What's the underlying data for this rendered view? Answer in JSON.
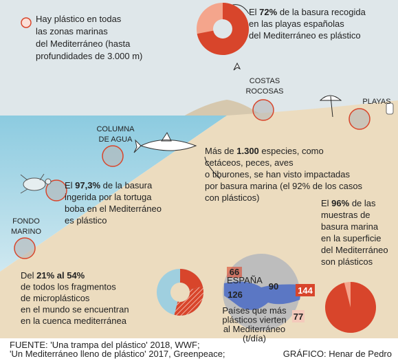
{
  "legend": {
    "lines": [
      [
        "Hay plástico en todas"
      ],
      [
        "las zonas marinas"
      ],
      [
        "del Mediterráneo (hasta"
      ],
      [
        "profundidades de 3.000 m)"
      ]
    ]
  },
  "annotations": [
    {
      "lines": [
        [
          "El ",
          {
            "text": "72%",
            "bold": true
          },
          " de la basura recogida"
        ],
        [
          "en las playas españolas"
        ],
        [
          "del Mediterráneo es plástico"
        ]
      ]
    },
    {
      "lines": [
        [
          "Más de ",
          {
            "text": "1.300",
            "bold": true
          },
          " especies, como"
        ],
        [
          "cetáceos, peces, aves"
        ],
        [
          "o tiburones, se han visto impactadas"
        ],
        [
          "por basura marina (el 92% de los casos"
        ],
        [
          "con plásticos)"
        ]
      ]
    },
    {
      "lines": [
        [
          "El ",
          {
            "text": "97,3%",
            "bold": true
          },
          " de la basura"
        ],
        [
          "ingerida por la tortuga"
        ],
        [
          "boba en el Mediterráneo"
        ],
        [
          "es plástico"
        ]
      ]
    },
    {
      "lines": [
        [
          "El ",
          {
            "text": "96%",
            "bold": true
          },
          " de las"
        ],
        [
          "muestras de"
        ],
        [
          "basura marina"
        ],
        [
          "en la superficie"
        ],
        [
          "del Mediterráneo"
        ],
        [
          "son plásticos"
        ]
      ]
    },
    {
      "lines": [
        [
          "Del ",
          {
            "text": "21% al 54%",
            "bold": true
          }
        ],
        [
          "de todos los fragmentos"
        ],
        [
          "de microplásticos"
        ],
        [
          "en el mundo se encuentran"
        ],
        [
          "en la cuenca mediterránea"
        ]
      ]
    }
  ],
  "zones": [
    {
      "lines": [
        "COSTAS",
        "ROCOSAS"
      ]
    },
    {
      "lines": [
        "PLAYAS"
      ]
    },
    {
      "lines": [
        "COLUMNA",
        "DE AGUA"
      ]
    },
    {
      "lines": [
        "FONDO",
        "MARINO"
      ]
    }
  ],
  "charts": [
    {
      "type": "pie",
      "value": 72,
      "color": "#d8452b",
      "rest_color": "#f4a58c"
    },
    {
      "type": "pie",
      "value": 96,
      "color": "#d8452b",
      "rest_color": "#f4a58c"
    },
    {
      "type": "range",
      "range": [
        21,
        54
      ],
      "color": "#d8452b",
      "rest_color": "#9fcfdf"
    }
  ],
  "map": {
    "country": "ESPAÑA",
    "values": [
      66,
      90,
      126,
      144,
      77
    ],
    "caption": [
      "Países que más",
      "plásticos vierten",
      "al Mediterráneo",
      "(t/día)"
    ]
  },
  "footer": {
    "source": [
      "FUENTE: 'Una trampa del plástico' 2018, WWF;",
      "'Un Mediterráneo lleno de plástico' 2017, Greenpeace;"
    ],
    "credit": "GRÁFICO: Henar de Pedro"
  }
}
